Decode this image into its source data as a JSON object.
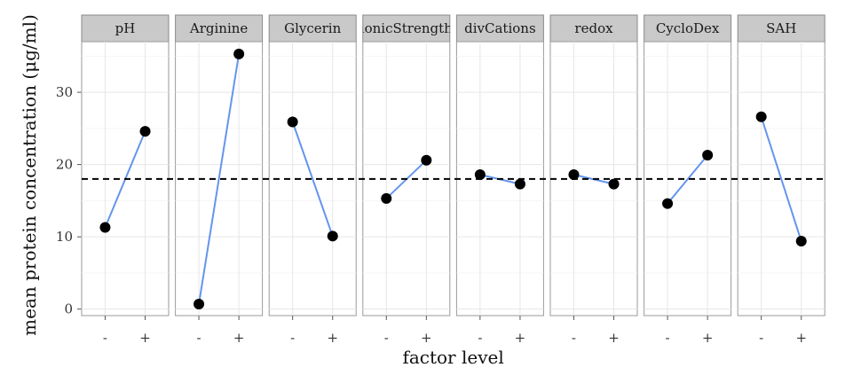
{
  "chart_data": {
    "type": "line",
    "facet": "horizontal",
    "panels": [
      {
        "label": "pH",
        "x": [
          "-",
          "+"
        ],
        "y": [
          11.3,
          24.6
        ]
      },
      {
        "label": "Arginine",
        "x": [
          "-",
          "+"
        ],
        "y": [
          0.7,
          35.3
        ]
      },
      {
        "label": "Glycerin",
        "x": [
          "-",
          "+"
        ],
        "y": [
          25.9,
          10.1
        ]
      },
      {
        "label": "ionicStrength",
        "x": [
          "-",
          "+"
        ],
        "y": [
          15.3,
          20.6
        ]
      },
      {
        "label": "divCations",
        "x": [
          "-",
          "+"
        ],
        "y": [
          18.6,
          17.3
        ]
      },
      {
        "label": "redox",
        "x": [
          "-",
          "+"
        ],
        "y": [
          18.6,
          17.3
        ]
      },
      {
        "label": "CycloDex",
        "x": [
          "-",
          "+"
        ],
        "y": [
          14.6,
          21.3
        ]
      },
      {
        "label": "SAH",
        "x": [
          "-",
          "+"
        ],
        "y": [
          26.6,
          9.4
        ]
      }
    ],
    "reference_line": {
      "y": 18,
      "style": "dashed"
    },
    "xlabel": "factor level",
    "ylabel": "mean protein concentration (μg/ml)",
    "yticks": [
      0,
      10,
      20,
      30
    ],
    "ylim": [
      -0.9,
      37.0
    ],
    "grid": true,
    "colors": {
      "line": "#6495ED",
      "point": "#000000",
      "reference": "#000000",
      "strip": "#C9C9C9",
      "panel_border": "#9A9A9A"
    }
  }
}
